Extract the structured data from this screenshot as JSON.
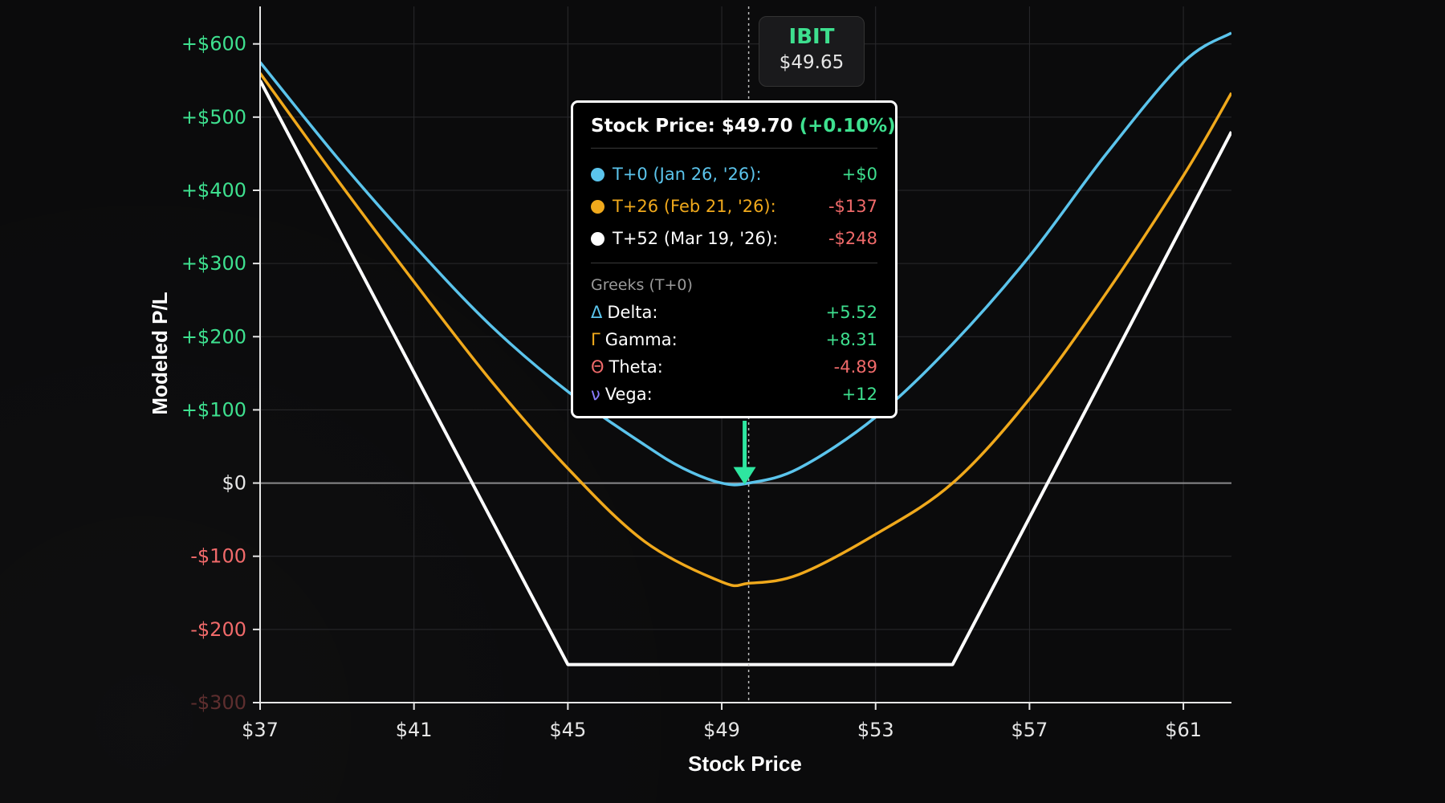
{
  "ticker": {
    "symbol": "IBIT",
    "price": "$49.65"
  },
  "tooltip": {
    "title_prefix": "Stock Price: $49.70",
    "title_change": "(+0.10%)",
    "series": [
      {
        "label": "T+0 (Jan 26, '26):",
        "value": "+$0",
        "color": "#5bc4ec",
        "value_color": "#3ee08f"
      },
      {
        "label": "T+26 (Feb 21, '26):",
        "value": "-$137",
        "color": "#f0a91c",
        "value_color": "#f06a6a"
      },
      {
        "label": "T+52 (Mar 19, '26):",
        "value": "-$248",
        "color": "#ffffff",
        "value_color": "#f06a6a"
      }
    ],
    "greeks_title": "Greeks (T+0)",
    "greeks": [
      {
        "symbol": "Δ",
        "name": "Delta:",
        "value": "+5.52",
        "symbol_color": "#5bc4ec",
        "value_color": "#3ee08f"
      },
      {
        "symbol": "Γ",
        "name": "Gamma:",
        "value": "+8.31",
        "symbol_color": "#f0a91c",
        "value_color": "#3ee08f"
      },
      {
        "symbol": "Θ",
        "name": "Theta:",
        "value": "-4.89",
        "symbol_color": "#f06a6a",
        "value_color": "#f06a6a"
      },
      {
        "symbol": "ν",
        "name": "Vega:",
        "value": "+12",
        "symbol_color": "#8a7cff",
        "value_color": "#3ee08f"
      }
    ]
  },
  "chart_data": {
    "type": "line",
    "xlabel": "Stock Price",
    "ylabel": "Modeled P/L",
    "xlim": [
      37,
      62.25
    ],
    "ylim": [
      -300,
      660
    ],
    "x_ticks": [
      37,
      41,
      45,
      49,
      53,
      57,
      61
    ],
    "x_tick_labels": [
      "$37",
      "$41",
      "$45",
      "$49",
      "$53",
      "$57",
      "$61"
    ],
    "y_ticks": [
      600,
      500,
      400,
      300,
      200,
      100,
      0,
      -100,
      -200,
      -300
    ],
    "y_tick_labels": [
      "+$600",
      "+$500",
      "+$400",
      "+$300",
      "+$200",
      "+$100",
      "$0",
      "-$100",
      "-$200",
      "-$300"
    ],
    "y_tick_colors": [
      "#3ee08f",
      "#3ee08f",
      "#3ee08f",
      "#3ee08f",
      "#3ee08f",
      "#3ee08f",
      "#e6e6e6",
      "#f06a6a",
      "#f06a6a",
      "#f06a6a"
    ],
    "grid": true,
    "current_price": 49.65,
    "cursor_price": 49.7,
    "series": [
      {
        "name": "T+0 (Jan 26, '26)",
        "color": "#5bc4ec",
        "x": [
          37,
          39,
          41,
          43,
          45,
          47,
          48,
          49,
          49.7,
          51,
          53,
          55,
          57,
          59,
          61,
          62.25
        ],
        "y": [
          575,
          445,
          325,
          215,
          125,
          52,
          20,
          0,
          0,
          20,
          90,
          190,
          310,
          450,
          575,
          615
        ]
      },
      {
        "name": "T+26 (Feb 21, '26)",
        "color": "#f0a91c",
        "x": [
          37,
          39,
          41,
          43,
          45,
          47,
          49,
          49.7,
          51,
          53,
          55,
          57,
          59,
          61,
          62.25
        ],
        "y": [
          560,
          415,
          275,
          140,
          20,
          -80,
          -135,
          -137,
          -125,
          -70,
          0,
          115,
          260,
          420,
          533
        ]
      },
      {
        "name": "T+52 (Mar 19, '26)",
        "color": "#ffffff",
        "x": [
          37,
          45,
          55,
          62.25
        ],
        "y": [
          550,
          -248,
          -248,
          480
        ]
      }
    ]
  }
}
